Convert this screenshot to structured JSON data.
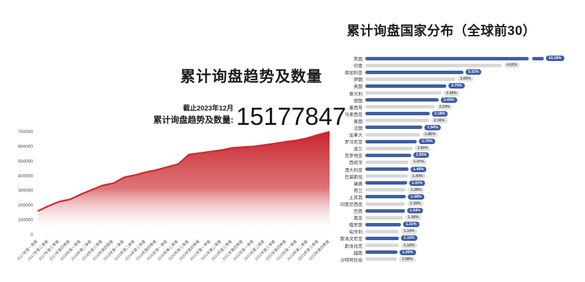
{
  "left_chart": {
    "title": "累计询盘趋势及数量",
    "stat_caption_line1": "截止2023年12月",
    "stat_caption_line2": "累计询盘趋势及数量:",
    "stat_value": "15177847",
    "line_color": "#cd2a30",
    "fill_top_color": "#c8242a"
  },
  "right_chart": {
    "title": "累计询盘国家分布（全球前30）",
    "bar_color_odd": "#3f5fa5",
    "bar_color_even": "#d8d8d8",
    "badge_color_odd": "#3f5fa5",
    "badge_text_odd": "#ffffff",
    "badge_color_even": "#e4e4e4",
    "badge_text_even": "#555555"
  },
  "chart_data": [
    {
      "type": "area",
      "title": "累计询盘趋势及数量",
      "xlabel": "",
      "ylabel": "",
      "ylim": [
        0,
        700000
      ],
      "y_ticks": [
        0,
        100000,
        200000,
        300000,
        400000,
        500000,
        600000,
        700000
      ],
      "grid": false,
      "x": [
        "2017年第一季度",
        "2017年第二季度",
        "2017年第三季度",
        "2017年第四季度",
        "2018年第一季度",
        "2018年第二季度",
        "2018年第三季度",
        "2018年第四季度",
        "2019年第一季度",
        "2019年第二季度",
        "2019年第三季度",
        "2019年第四季度",
        "2020年第一季度",
        "2020年第二季度",
        "2020年第三季度",
        "2020年第四季度",
        "2021年第一季度",
        "2021年第二季度",
        "2021年第三季度",
        "2021年第四季度",
        "2022年第一季度",
        "2022年第二季度",
        "2022年第三季度",
        "2022年第四季度",
        "2023年第一季度",
        "2023年第二季度",
        "2023年第三季度",
        "2023年第四季度"
      ],
      "values": [
        160000,
        195000,
        225000,
        240000,
        275000,
        305000,
        335000,
        350000,
        390000,
        405000,
        425000,
        440000,
        460000,
        480000,
        545000,
        555000,
        565000,
        575000,
        590000,
        595000,
        600000,
        610000,
        620000,
        632000,
        642000,
        658000,
        680000,
        700000
      ]
    },
    {
      "type": "bar",
      "orientation": "horizontal",
      "title": "累计询盘国家分布（全球前30）",
      "legend": false,
      "categories": [
        "美国",
        "印度",
        "保加利亚",
        "伊朗",
        "英国",
        "意大利",
        "德国",
        "墨西哥",
        "马来西亚",
        "泰国",
        "法国",
        "加拿大",
        "罗马尼亚",
        "波兰",
        "克罗地亚",
        "西班牙",
        "澳大利亚",
        "巴基斯坦",
        "瑞典",
        "荷兰",
        "土耳其",
        "印度尼西亚",
        "巴西",
        "南非",
        "俄罗斯",
        "匈牙利",
        "斯洛文尼亚",
        "斯洛伐克",
        "越南",
        "沙特阿拉伯"
      ],
      "values": [
        10.19,
        4.62,
        3.32,
        3.05,
        2.75,
        2.58,
        2.49,
        2.34,
        2.18,
        2.16,
        1.94,
        1.85,
        1.75,
        1.6,
        1.55,
        1.47,
        1.46,
        1.43,
        1.41,
        1.38,
        1.38,
        1.35,
        1.34,
        1.28,
        1.21,
        1.14,
        1.14,
        1.14,
        1.09,
        1.08
      ],
      "labels": [
        "10.19%",
        "4.62%",
        "3.32%",
        "3.05%",
        "2.75%",
        "2.58%",
        "2.49%",
        "2.34%",
        "2.18%",
        "2.16%",
        "1.94%",
        "1.85%",
        "1.75%",
        "1.60%",
        "1.55%",
        "1.47%",
        "1.46%",
        "1.43%",
        "1.41%",
        "1.38%",
        "1.38%",
        "1.35%",
        "1.34%",
        "1.28%",
        "1.21%",
        "1.14%",
        "1.14%",
        "1.14%",
        "1.09%",
        "1.08%"
      ],
      "note": "first bar truncated with axis break"
    }
  ]
}
